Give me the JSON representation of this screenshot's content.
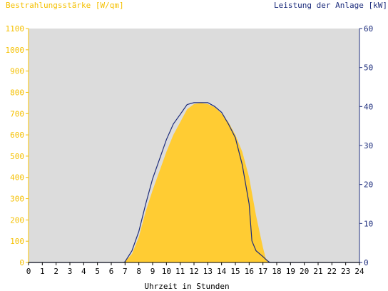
{
  "chart_data": {
    "type": "area",
    "title_left": "Bestrahlungsstärke [W/qm]",
    "title_right": "Leistung der Anlage [kW]",
    "xlabel": "Uhrzeit in Stunden",
    "x_ticks": [
      "0",
      "1",
      "2",
      "3",
      "4",
      "5",
      "6",
      "7",
      "8",
      "9",
      "10",
      "11",
      "12",
      "13",
      "14",
      "15",
      "16",
      "17",
      "18",
      "19",
      "20",
      "21",
      "22",
      "23",
      "24"
    ],
    "y_left_ticks": [
      "0",
      "100",
      "200",
      "300",
      "400",
      "500",
      "600",
      "700",
      "800",
      "900",
      "1000",
      "1100"
    ],
    "y_right_ticks": [
      "0",
      "10",
      "20",
      "30",
      "40",
      "50",
      "60"
    ],
    "xlim": [
      0,
      24
    ],
    "ylim_left": [
      0,
      1100
    ],
    "ylim_right": [
      0,
      60
    ],
    "grid": false,
    "colors": {
      "background": "#dcdcdc",
      "irradiance_fill": "#ffcc33",
      "power_line": "#1c2c7c",
      "left_axis": "#f5c000",
      "right_axis": "#1c2c7c"
    },
    "series": [
      {
        "axis": "left",
        "style": "area",
        "x": [
          0,
          6.9,
          7.0,
          7.5,
          8.0,
          8.5,
          9.0,
          9.5,
          10.0,
          10.5,
          11.0,
          11.5,
          12.0,
          12.5,
          13.0,
          13.5,
          14.0,
          14.5,
          15.0,
          15.5,
          16.0,
          16.5,
          17.0,
          17.2,
          17.5,
          24
        ],
        "y": [
          0,
          0,
          5,
          40,
          120,
          240,
          340,
          430,
          520,
          600,
          660,
          720,
          745,
          750,
          745,
          730,
          700,
          660,
          600,
          520,
          400,
          220,
          70,
          20,
          0,
          0
        ]
      },
      {
        "axis": "right",
        "style": "line",
        "x": [
          0,
          6.9,
          7.0,
          7.5,
          8.0,
          8.5,
          9.0,
          9.5,
          10.0,
          10.5,
          11.0,
          11.5,
          12.0,
          12.5,
          13.0,
          13.5,
          14.0,
          14.5,
          15.0,
          15.5,
          16.0,
          16.2,
          16.5,
          17.0,
          17.3,
          17.5,
          24
        ],
        "y": [
          0,
          0,
          0.2,
          3.0,
          8.0,
          15.0,
          21.5,
          26.5,
          31.5,
          35.5,
          38.0,
          40.5,
          41.0,
          41.0,
          41.0,
          40.0,
          38.5,
          35.5,
          32.0,
          25.0,
          15.0,
          5.5,
          3.0,
          1.5,
          0.5,
          0,
          0
        ]
      }
    ]
  }
}
